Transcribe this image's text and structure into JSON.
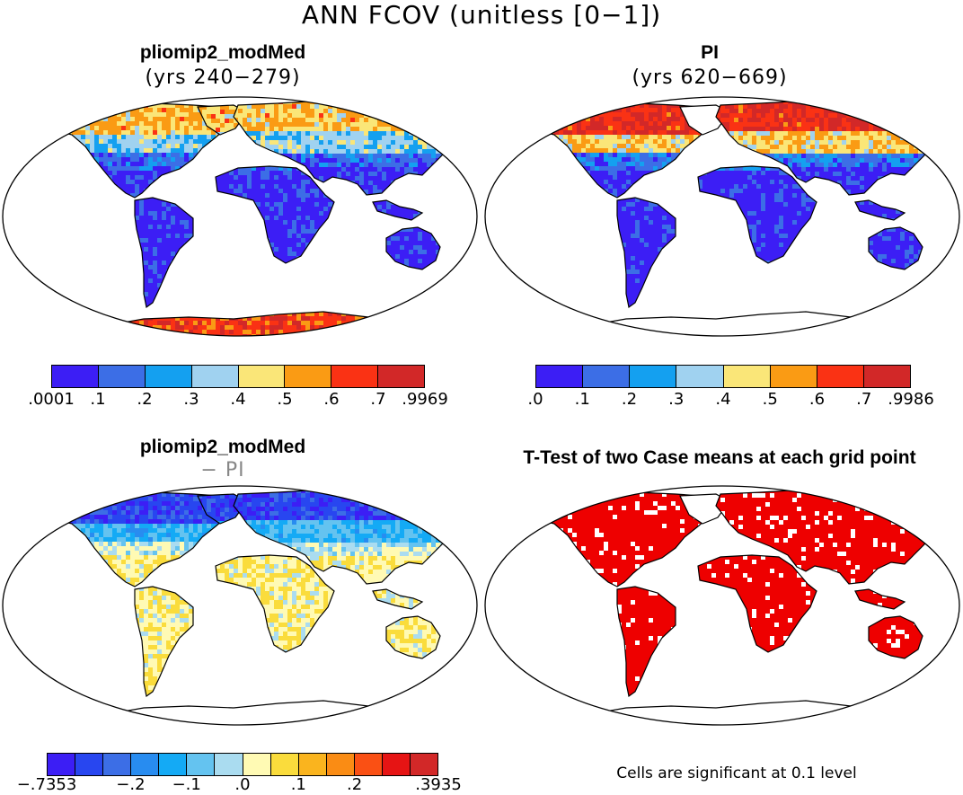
{
  "figure": {
    "title": "ANN FCOV (unitless [0−1])",
    "note": "Cells are significant at 0.1 level"
  },
  "colors": {
    "ocean": "#ffffff",
    "coast": "#000000",
    "significant": "#ee0000"
  },
  "chart_data": [
    {
      "type": "heatmap",
      "panel": "top-left",
      "title": "pliomip2_modMed",
      "subtitle": "(yrs 240−279)",
      "variable": "FCOV",
      "units": "unitless [0-1]",
      "colorbar": {
        "tick_labels": [
          ".0001",
          ".1",
          ".2",
          ".3",
          ".4",
          ".5",
          ".6",
          ".7",
          ".9969"
        ],
        "levels": [
          0.0001,
          0.1,
          0.2,
          0.3,
          0.4,
          0.5,
          0.6,
          0.7,
          0.9969
        ],
        "colors": [
          "#3c1ef5",
          "#3c6ee6",
          "#14a0f0",
          "#a0d2f0",
          "#fae678",
          "#fa9b14",
          "#fa3214",
          "#d22828"
        ]
      }
    },
    {
      "type": "heatmap",
      "panel": "top-right",
      "title": "PI",
      "subtitle": "(yrs 620−669)",
      "variable": "FCOV",
      "units": "unitless [0-1]",
      "colorbar": {
        "tick_labels": [
          ".0",
          ".1",
          ".2",
          ".3",
          ".4",
          ".5",
          ".6",
          ".7",
          ".9986"
        ],
        "levels": [
          0.0,
          0.1,
          0.2,
          0.3,
          0.4,
          0.5,
          0.6,
          0.7,
          0.9986
        ],
        "colors": [
          "#3c1ef5",
          "#3c6ee6",
          "#14a0f0",
          "#a0d2f0",
          "#fae678",
          "#fa9b14",
          "#fa3214",
          "#d22828"
        ]
      }
    },
    {
      "type": "heatmap",
      "panel": "bottom-left",
      "title": "pliomip2_modMed",
      "subtitle": "− PI",
      "variable": "FCOV difference",
      "colorbar": {
        "tick_labels": [
          "−.7353",
          "−.2",
          "−.1",
          ".0",
          ".1",
          ".2",
          ".3935"
        ],
        "colors": [
          "#3c1ef5",
          "#2846f0",
          "#3c6ee6",
          "#288cf0",
          "#14aaf5",
          "#64c3f0",
          "#aadcf0",
          "#fffab4",
          "#fadc3c",
          "#fab41e",
          "#fa8c14",
          "#fa5014",
          "#e61414",
          "#d22828"
        ]
      }
    },
    {
      "type": "heatmap",
      "panel": "bottom-right",
      "title": "T-Test of two Case means at each grid point",
      "variable": "significance mask",
      "significance_level": 0.1
    }
  ]
}
